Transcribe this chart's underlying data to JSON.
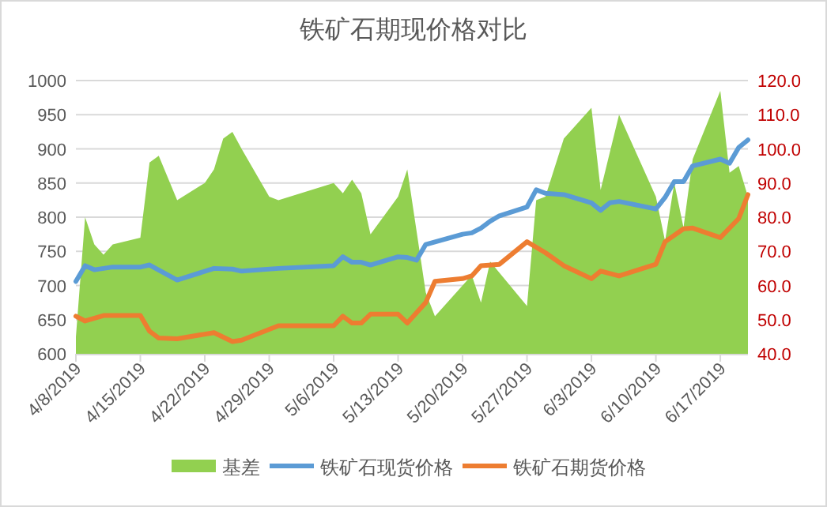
{
  "chart_data": {
    "type": "line",
    "title": "铁矿石期现价格对比",
    "xlim": [
      "2019-04-08",
      "2019-06-20"
    ],
    "xticks": [
      {
        "value": "2019-04-08",
        "label": "4/8/2019"
      },
      {
        "value": "2019-04-15",
        "label": "4/15/2019"
      },
      {
        "value": "2019-04-22",
        "label": "4/22/2019"
      },
      {
        "value": "2019-04-29",
        "label": "4/29/2019"
      },
      {
        "value": "2019-05-06",
        "label": "5/6/2019"
      },
      {
        "value": "2019-05-13",
        "label": "5/13/2019"
      },
      {
        "value": "2019-05-20",
        "label": "5/20/2019"
      },
      {
        "value": "2019-05-27",
        "label": "5/27/2019"
      },
      {
        "value": "2019-06-03",
        "label": "6/3/2019"
      },
      {
        "value": "2019-06-10",
        "label": "6/10/2019"
      },
      {
        "value": "2019-06-17",
        "label": "6/17/2019"
      }
    ],
    "ylim": [
      600,
      1000
    ],
    "yticks": [
      600,
      650,
      700,
      750,
      800,
      850,
      900,
      950,
      1000
    ],
    "y2lim": [
      40,
      120
    ],
    "y2ticks": [
      {
        "value": 40,
        "label": "40.0"
      },
      {
        "value": 50,
        "label": "50.0"
      },
      {
        "value": 60,
        "label": "60.0"
      },
      {
        "value": 70,
        "label": "70.0"
      },
      {
        "value": 80,
        "label": "80.0"
      },
      {
        "value": 90,
        "label": "90.0"
      },
      {
        "value": 100,
        "label": "100.0"
      },
      {
        "value": 110,
        "label": "110.0"
      },
      {
        "value": 120,
        "label": "120.0"
      }
    ],
    "grid": "y",
    "legend": "bottom",
    "series": [
      {
        "name": "基差",
        "type": "area",
        "axis": "y2",
        "color": "#92d050",
        "x": [
          "2019-04-08",
          "2019-04-09",
          "2019-04-10",
          "2019-04-11",
          "2019-04-12",
          "2019-04-15",
          "2019-04-16",
          "2019-04-17",
          "2019-04-19",
          "2019-04-22",
          "2019-04-23",
          "2019-04-24",
          "2019-04-25",
          "2019-04-26",
          "2019-04-29",
          "2019-04-30",
          "2019-05-06",
          "2019-05-07",
          "2019-05-08",
          "2019-05-09",
          "2019-05-10",
          "2019-05-13",
          "2019-05-14",
          "2019-05-16",
          "2019-05-17",
          "2019-05-21",
          "2019-05-22",
          "2019-05-23",
          "2019-05-27",
          "2019-05-28",
          "2019-05-29",
          "2019-05-31",
          "2019-06-03",
          "2019-06-04",
          "2019-06-06",
          "2019-06-10",
          "2019-06-11",
          "2019-06-12",
          "2019-06-13",
          "2019-06-14",
          "2019-06-17",
          "2019-06-18",
          "2019-06-19",
          "2019-06-20"
        ],
        "values": [
          45,
          80,
          72,
          69,
          72,
          74,
          96,
          98,
          85,
          90,
          94,
          103,
          105,
          100,
          86,
          85,
          90,
          87,
          91,
          87,
          75,
          86,
          94,
          58,
          51,
          63,
          55,
          67,
          54,
          85,
          86,
          103,
          112,
          88,
          110,
          86,
          73,
          90,
          77,
          97,
          117,
          93,
          95,
          86
        ]
      },
      {
        "name": "铁矿石现货价格",
        "type": "line",
        "axis": "y",
        "color": "#5b9bd5",
        "x": [
          "2019-04-08",
          "2019-04-09",
          "2019-04-10",
          "2019-04-12",
          "2019-04-15",
          "2019-04-16",
          "2019-04-19",
          "2019-04-23",
          "2019-04-25",
          "2019-04-26",
          "2019-04-30",
          "2019-05-06",
          "2019-05-07",
          "2019-05-08",
          "2019-05-09",
          "2019-05-10",
          "2019-05-13",
          "2019-05-14",
          "2019-05-15",
          "2019-05-16",
          "2019-05-20",
          "2019-05-21",
          "2019-05-22",
          "2019-05-23",
          "2019-05-24",
          "2019-05-27",
          "2019-05-28",
          "2019-05-29",
          "2019-05-31",
          "2019-06-03",
          "2019-06-04",
          "2019-06-05",
          "2019-06-06",
          "2019-06-10",
          "2019-06-11",
          "2019-06-12",
          "2019-06-13",
          "2019-06-14",
          "2019-06-17",
          "2019-06-18",
          "2019-06-19",
          "2019-06-20"
        ],
        "values": [
          706,
          729,
          723,
          727,
          727,
          730,
          708,
          725,
          724,
          721,
          725,
          729,
          742,
          734,
          734,
          730,
          742,
          741,
          737,
          760,
          775,
          777,
          784,
          794,
          802,
          815,
          840,
          835,
          833,
          821,
          810,
          821,
          823,
          812,
          829,
          852,
          852,
          875,
          885,
          879,
          902,
          913
        ]
      },
      {
        "name": "铁矿石期货价格",
        "type": "line",
        "axis": "y",
        "color": "#ed7d31",
        "x": [
          "2019-04-08",
          "2019-04-09",
          "2019-04-11",
          "2019-04-15",
          "2019-04-16",
          "2019-04-17",
          "2019-04-19",
          "2019-04-23",
          "2019-04-25",
          "2019-04-26",
          "2019-04-30",
          "2019-05-06",
          "2019-05-07",
          "2019-05-08",
          "2019-05-09",
          "2019-05-10",
          "2019-05-13",
          "2019-05-14",
          "2019-05-15",
          "2019-05-16",
          "2019-05-17",
          "2019-05-20",
          "2019-05-21",
          "2019-05-22",
          "2019-05-24",
          "2019-05-27",
          "2019-05-29",
          "2019-05-31",
          "2019-06-03",
          "2019-06-04",
          "2019-06-06",
          "2019-06-10",
          "2019-06-11",
          "2019-06-13",
          "2019-06-14",
          "2019-06-17",
          "2019-06-19",
          "2019-06-20"
        ],
        "values": [
          655,
          648,
          656,
          656,
          633,
          623,
          622,
          631,
          618,
          620,
          641,
          641,
          655,
          645,
          645,
          658,
          658,
          645,
          660,
          675,
          706,
          710,
          714,
          729,
          731,
          764,
          748,
          729,
          710,
          721,
          714,
          731,
          764,
          783,
          784,
          770,
          798,
          833
        ]
      }
    ]
  }
}
